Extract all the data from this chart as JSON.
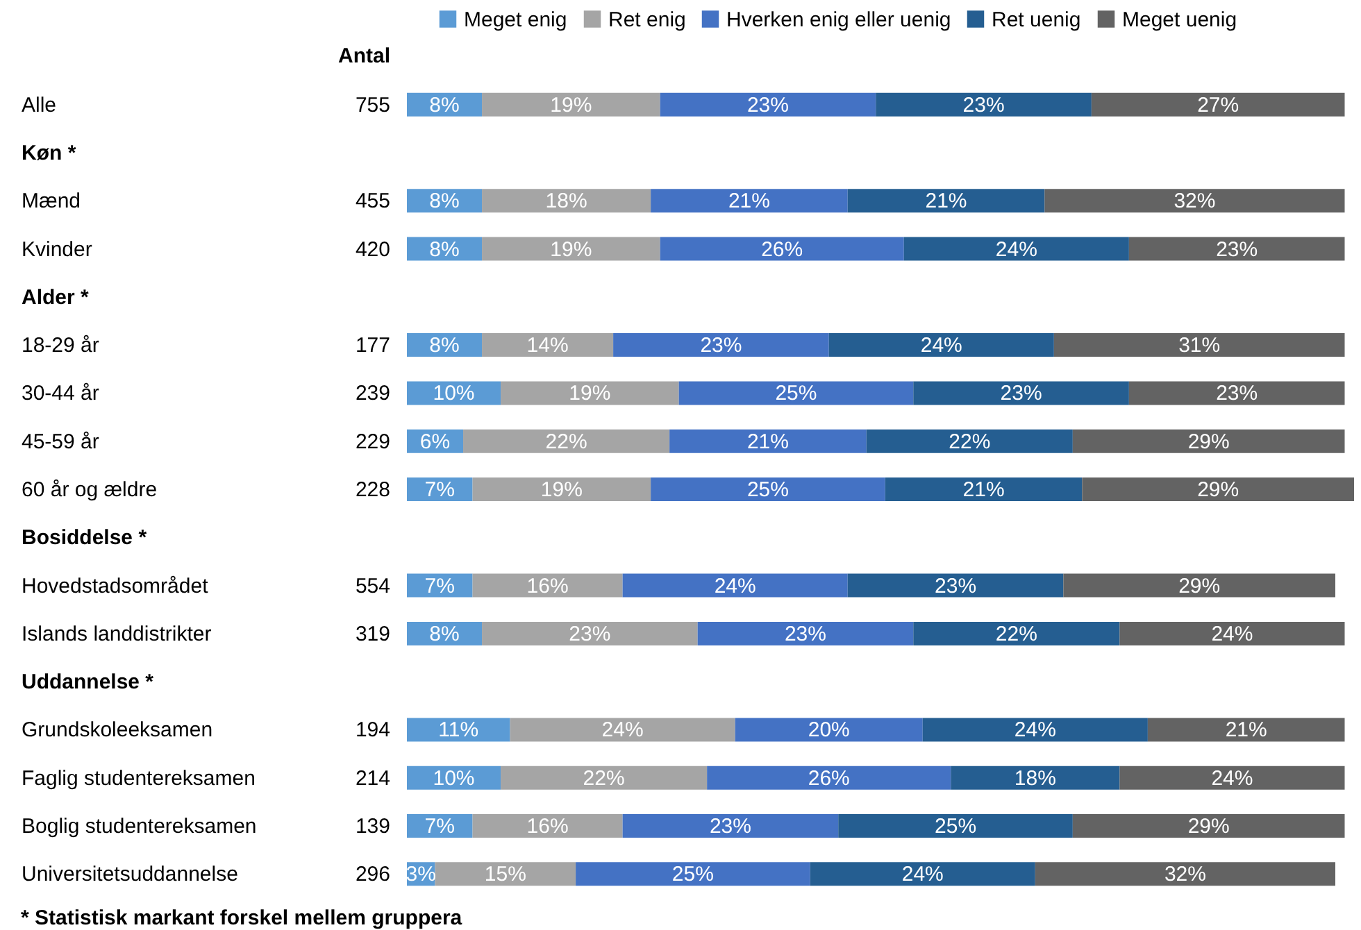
{
  "chart_data": {
    "type": "bar",
    "orientation": "horizontal",
    "stacked": true,
    "legend": "top",
    "grid": false,
    "tick_labels": "y",
    "categories": [
      "Alle",
      "Køn *",
      "Mænd",
      "Kvinder",
      "Alder *",
      "18-29 år",
      "30-44 år",
      "45-59 år",
      "60 år og ældre",
      "Bosiddelse *",
      "Hovedstadsområdet",
      "Islands landdistrikter",
      "Uddannelse *",
      "Grundskoleeksamen",
      "Faglig studentereksamen",
      "Boglig studentereksamen",
      "Universitetsuddannelse"
    ],
    "series": [
      {
        "name": "Meget enig",
        "color": "#5b9bd5",
        "values": [
          8,
          null,
          8,
          8,
          null,
          8,
          10,
          6,
          7,
          null,
          7,
          8,
          null,
          11,
          10,
          7,
          3
        ],
        "value_labels": [
          "8%",
          null,
          "8%",
          "8%",
          null,
          "8%",
          "10%",
          "6%",
          "7%",
          null,
          "7%",
          "8%",
          null,
          "11%",
          "10%",
          "7%",
          "3%"
        ]
      },
      {
        "name": "Ret enig",
        "color": "#a5a5a5",
        "values": [
          19,
          null,
          18,
          19,
          null,
          14,
          19,
          22,
          19,
          null,
          16,
          23,
          null,
          24,
          22,
          16,
          15
        ],
        "value_labels": [
          "19%",
          null,
          "18%",
          "19%",
          null,
          "14%",
          "19%",
          "22%",
          "19%",
          null,
          "16%",
          "23%",
          null,
          "24%",
          "22%",
          "16%",
          "15%"
        ]
      },
      {
        "name": "Hverken enig eller uenig",
        "color": "#4472c4",
        "values": [
          23,
          null,
          21,
          26,
          null,
          23,
          25,
          21,
          25,
          null,
          24,
          23,
          null,
          20,
          26,
          23,
          25
        ],
        "value_labels": [
          "23%",
          null,
          "21%",
          "26%",
          null,
          "23%",
          "25%",
          "21%",
          "25%",
          null,
          "24%",
          "23%",
          null,
          "20%",
          "26%",
          "23%",
          "25%"
        ]
      },
      {
        "name": "Ret uenig",
        "color": "#255e91",
        "values": [
          23,
          null,
          21,
          24,
          null,
          24,
          23,
          22,
          21,
          null,
          23,
          22,
          null,
          24,
          18,
          25,
          24
        ],
        "value_labels": [
          "23%",
          null,
          "21%",
          "24%",
          null,
          "24%",
          "23%",
          "22%",
          "21%",
          null,
          "23%",
          "22%",
          null,
          "24%",
          "18%",
          "25%",
          "24%"
        ]
      },
      {
        "name": "Meget uenig",
        "color": "#636363",
        "values": [
          27,
          null,
          32,
          23,
          null,
          31,
          23,
          29,
          29,
          null,
          29,
          24,
          null,
          21,
          24,
          29,
          32
        ],
        "value_labels": [
          "27%",
          null,
          "32%",
          "23%",
          null,
          "31%",
          "23%",
          "29%",
          "29%",
          null,
          "29%",
          "24%",
          null,
          "21%",
          "24%",
          "29%",
          "32%"
        ]
      }
    ],
    "annotations": [
      "Antal",
      "755",
      "455",
      "420",
      "177",
      "239",
      "229",
      "228",
      "554",
      "319",
      "194",
      "214",
      "139",
      "296",
      "* Statistisk markant forskel mellem gruppera"
    ]
  }
}
